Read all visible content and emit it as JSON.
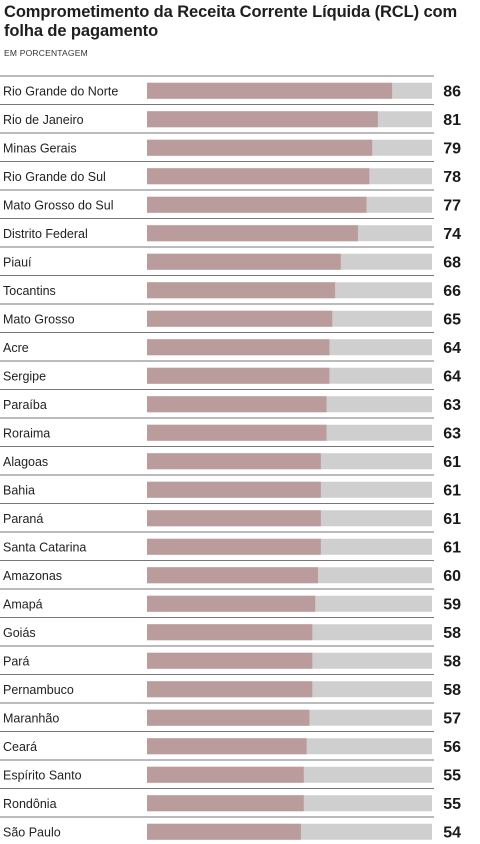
{
  "chart_data": {
    "type": "bar",
    "orientation": "horizontal",
    "title": "Comprometimento da Receita Corrente Líquida (RCL) com folha de pagamento",
    "subtitle": "EM PORCENTAGEM",
    "xlim": [
      0,
      100
    ],
    "colors": {
      "bar": "#b99c9b",
      "track": "#cfcfcf",
      "divider": "#4a4a4a"
    },
    "categories": [
      "Rio Grande do Norte",
      "Rio de Janeiro",
      "Minas Gerais",
      "Rio Grande do Sul",
      "Mato Grosso do Sul",
      "Distrito Federal",
      "Piauí",
      "Tocantins",
      "Mato Grosso",
      "Acre",
      "Sergipe",
      "Paraíba",
      "Roraima",
      "Alagoas",
      "Bahia",
      "Paraná",
      "Santa Catarina",
      "Amazonas",
      "Amapá",
      "Goiás",
      "Pará",
      "Pernambuco",
      "Maranhão",
      "Ceará",
      "Espírito Santo",
      "Rondônia",
      "São Paulo"
    ],
    "values": [
      86,
      81,
      79,
      78,
      77,
      74,
      68,
      66,
      65,
      64,
      64,
      63,
      63,
      61,
      61,
      61,
      61,
      60,
      59,
      58,
      58,
      58,
      57,
      56,
      55,
      55,
      54
    ]
  }
}
